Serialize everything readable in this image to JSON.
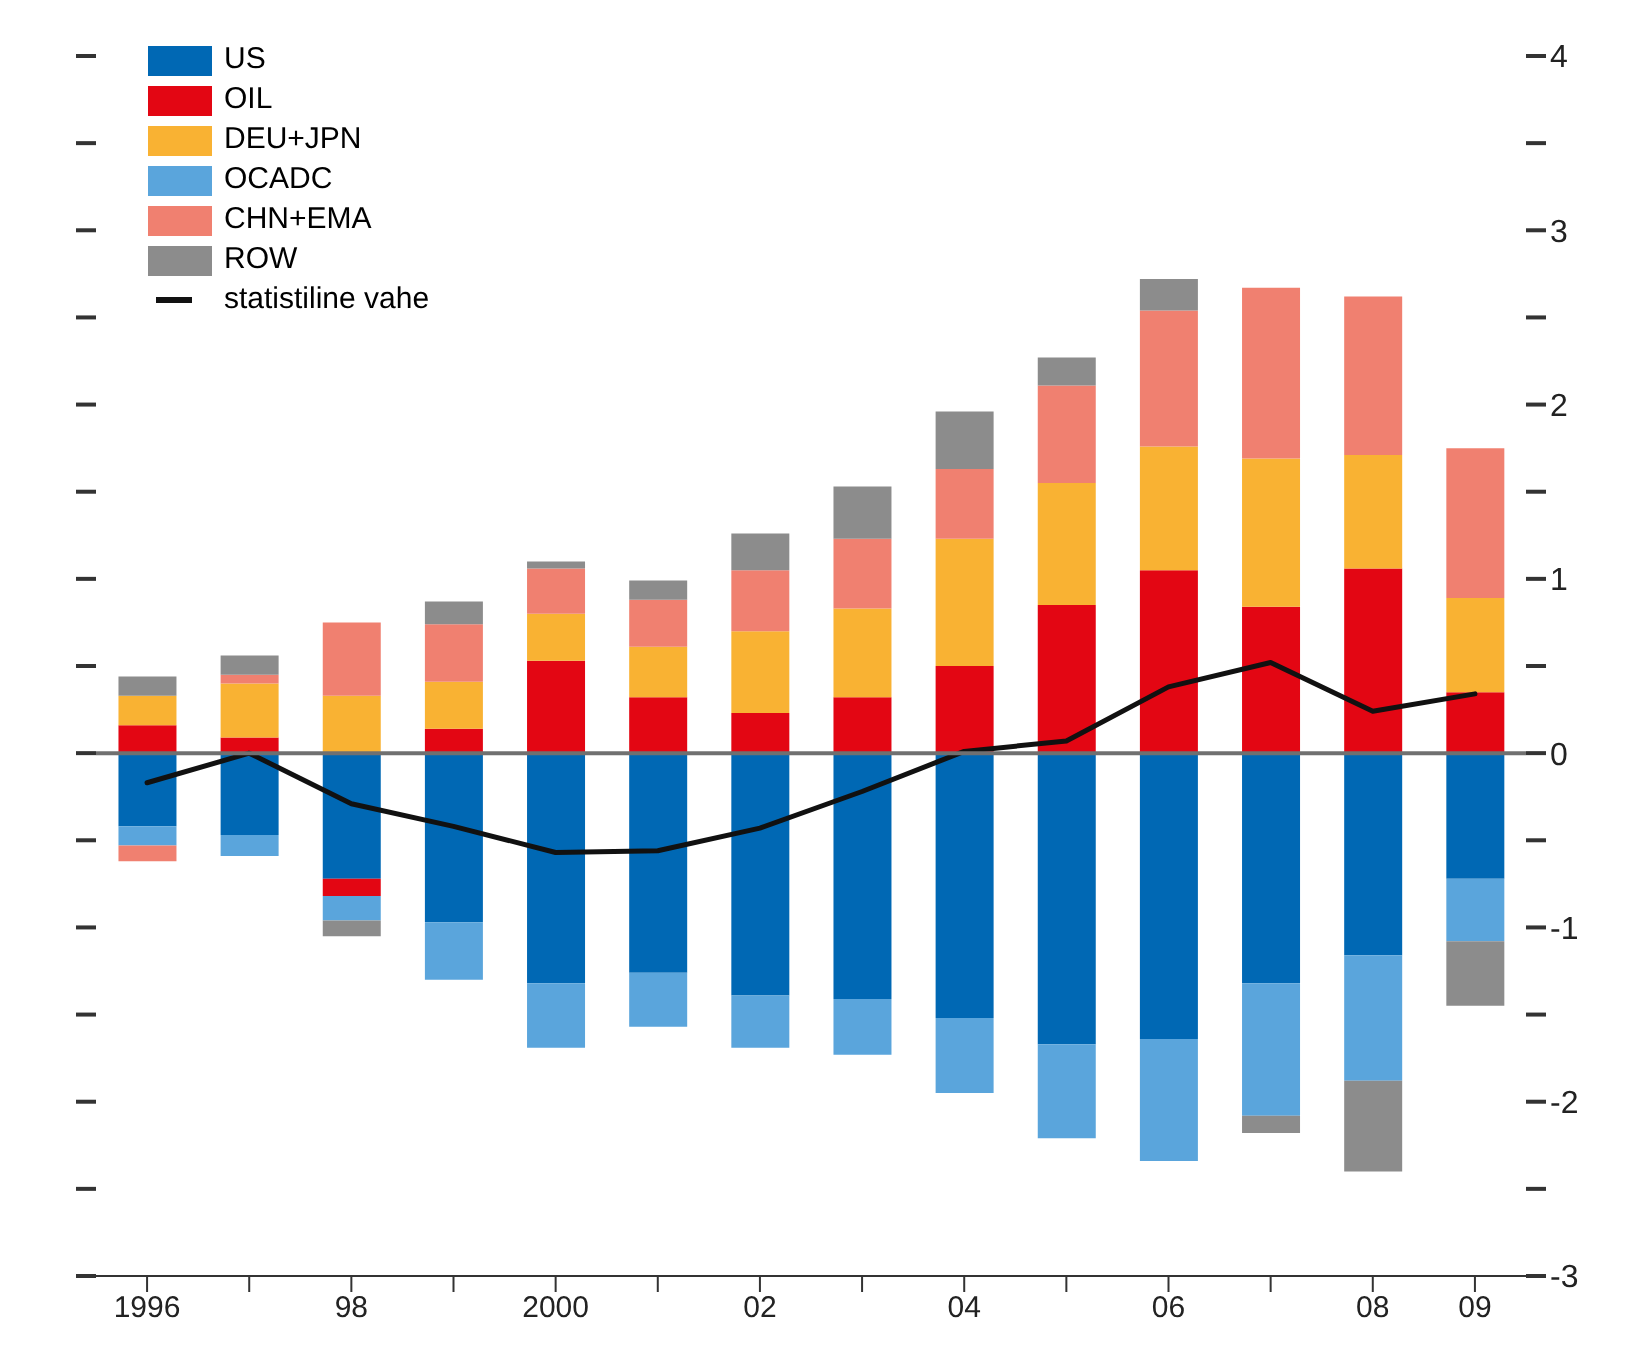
{
  "chart_data": {
    "type": "bar",
    "stacked": true,
    "categories": [
      "1996",
      null,
      "98",
      null,
      "2000",
      null,
      "02",
      null,
      "04",
      null,
      "06",
      null,
      "08",
      "09"
    ],
    "series": [
      {
        "name": "US",
        "color": "#0068b4",
        "values": [
          -0.42,
          -0.47,
          -0.72,
          -0.97,
          -1.32,
          -1.26,
          -1.39,
          -1.41,
          -1.52,
          -1.67,
          -1.64,
          -1.32,
          -1.16,
          -0.72
        ]
      },
      {
        "name": "OIL",
        "color": "#e30613",
        "values": [
          0.16,
          0.09,
          -0.1,
          0.14,
          0.53,
          0.32,
          0.23,
          0.32,
          0.5,
          0.85,
          1.05,
          0.84,
          1.06,
          0.35
        ]
      },
      {
        "name": "DEU+JPN",
        "color": "#f9b233",
        "values": [
          0.17,
          0.31,
          0.33,
          0.27,
          0.27,
          0.29,
          0.47,
          0.51,
          0.73,
          0.7,
          0.71,
          0.85,
          0.65,
          0.54
        ]
      },
      {
        "name": "OCADC",
        "color": "#5aa5dc",
        "values": [
          -0.11,
          -0.12,
          -0.14,
          -0.33,
          -0.37,
          -0.31,
          -0.3,
          -0.32,
          -0.43,
          -0.54,
          -0.7,
          -0.76,
          -0.72,
          -0.36
        ]
      },
      {
        "name": "CHN+EMA",
        "color": "#f08070",
        "values": [
          -0.09,
          0.05,
          0.42,
          0.33,
          0.26,
          0.27,
          0.35,
          0.4,
          0.4,
          0.56,
          0.78,
          0.98,
          0.91,
          0.86
        ]
      },
      {
        "name": "ROW",
        "color": "#8c8c8c",
        "values": [
          0.11,
          0.11,
          -0.09,
          0.13,
          0.04,
          0.11,
          0.21,
          0.3,
          0.33,
          0.16,
          0.18,
          -0.1,
          -0.52,
          -0.37
        ]
      },
      {
        "name": "statistiline vahe",
        "type": "line",
        "color": "#111111",
        "marker": "none",
        "line_style": "solid",
        "values": [
          -0.17,
          0.0,
          -0.29,
          -0.42,
          -0.57,
          -0.56,
          -0.43,
          -0.22,
          0.01,
          0.07,
          0.38,
          0.52,
          0.24,
          0.34
        ]
      }
    ],
    "ylim": [
      -3,
      4
    ],
    "yticks": [
      -3,
      {
        "value": -2.5,
        "label": null
      },
      -2,
      {
        "value": -1.5,
        "label": null
      },
      -1,
      {
        "value": -0.5,
        "label": null
      },
      0,
      {
        "value": 0.5,
        "label": null
      },
      1,
      {
        "value": 1.5,
        "label": null
      },
      2,
      {
        "value": 2.5,
        "label": null
      },
      3,
      {
        "value": 3.5,
        "label": null
      },
      4
    ],
    "ref_lines": [
      {
        "axis": "y",
        "value": 0,
        "color": "#707070"
      }
    ],
    "grid": false,
    "legend": "top left"
  }
}
